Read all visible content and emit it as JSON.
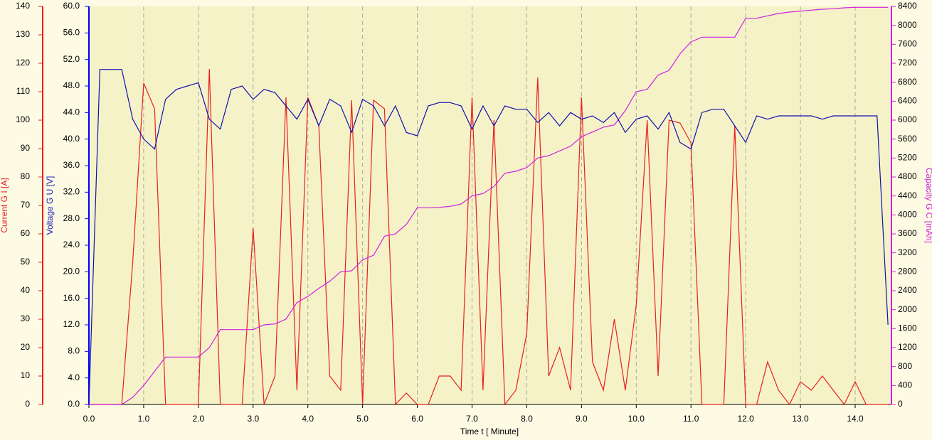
{
  "chart_data": {
    "type": "line",
    "xlabel": "Time  t  [ Minute]",
    "ylabel": "Voltage G  U  [V]",
    "y2label": "Capacity G  C  [mAh]",
    "y3label": "Current G  I  [A]",
    "grid": true,
    "xlim": [
      0,
      14.65
    ],
    "xticks": [
      {
        "value": 0,
        "label": "0.0"
      },
      {
        "value": 1,
        "label": "1.0"
      },
      {
        "value": 2,
        "label": "2.0"
      },
      {
        "value": 3,
        "label": "3.0"
      },
      {
        "value": 4,
        "label": "4.0"
      },
      {
        "value": 5,
        "label": "5.0"
      },
      {
        "value": 6,
        "label": "6.0"
      },
      {
        "value": 7,
        "label": "7.0"
      },
      {
        "value": 8,
        "label": "8.0"
      },
      {
        "value": 9,
        "label": "9.0"
      },
      {
        "value": 10,
        "label": "10.0"
      },
      {
        "value": 11,
        "label": "11.0"
      },
      {
        "value": 12,
        "label": "12.0"
      },
      {
        "value": 13,
        "label": "13.0"
      },
      {
        "value": 14,
        "label": "14.0"
      }
    ],
    "ylim": [
      0,
      60
    ],
    "yticks": [
      {
        "value": 0,
        "label": "0.0"
      },
      {
        "value": 4,
        "label": "4.0"
      },
      {
        "value": 8,
        "label": "8.0"
      },
      {
        "value": 12,
        "label": "12.0"
      },
      {
        "value": 16,
        "label": "16.0"
      },
      {
        "value": 20,
        "label": "20.0"
      },
      {
        "value": 24,
        "label": "24.0"
      },
      {
        "value": 28,
        "label": "28.0"
      },
      {
        "value": 32,
        "label": "32.0"
      },
      {
        "value": 36,
        "label": "36.0"
      },
      {
        "value": 40,
        "label": "40.0"
      },
      {
        "value": 44,
        "label": "44.0"
      },
      {
        "value": 48,
        "label": "48.0"
      },
      {
        "value": 52,
        "label": "52.0"
      },
      {
        "value": 56,
        "label": "56.0"
      },
      {
        "value": 60,
        "label": "60.0"
      }
    ],
    "y2lim": [
      0,
      8400
    ],
    "y2ticks": [
      0,
      400,
      800,
      1200,
      1600,
      2000,
      2400,
      2800,
      3200,
      3600,
      4000,
      4400,
      4800,
      5200,
      5600,
      6000,
      6400,
      6800,
      7200,
      7600,
      8000,
      8400
    ],
    "y3lim": [
      0,
      140
    ],
    "y3ticks": [
      0,
      10,
      20,
      30,
      40,
      50,
      60,
      70,
      80,
      90,
      100,
      110,
      120,
      130,
      140
    ],
    "x": [
      0,
      0.2,
      0.4,
      0.6,
      0.8,
      1.0,
      1.2,
      1.4,
      1.6,
      1.8,
      2.0,
      2.2,
      2.4,
      2.6,
      2.8,
      3.0,
      3.2,
      3.4,
      3.6,
      3.8,
      4.0,
      4.2,
      4.4,
      4.6,
      4.8,
      5.0,
      5.2,
      5.4,
      5.6,
      5.8,
      6.0,
      6.2,
      6.4,
      6.6,
      6.8,
      7.0,
      7.2,
      7.4,
      7.6,
      7.8,
      8.0,
      8.2,
      8.4,
      8.6,
      8.8,
      9.0,
      9.2,
      9.4,
      9.6,
      9.8,
      10.0,
      10.2,
      10.4,
      10.6,
      10.8,
      11.0,
      11.2,
      11.4,
      11.6,
      11.8,
      12.0,
      12.2,
      12.4,
      12.6,
      12.8,
      13.0,
      13.2,
      13.4,
      13.6,
      13.8,
      14.0,
      14.2,
      14.4,
      14.6
    ],
    "series": [
      {
        "name": "Current",
        "color": "#e8201c",
        "axis": "y3",
        "values": [
          0,
          0,
          0,
          0,
          50,
          113,
          104,
          0,
          0,
          0,
          0,
          118,
          0,
          0,
          0,
          62,
          0,
          10,
          108,
          5,
          108,
          98,
          10,
          5,
          107,
          0,
          107,
          104,
          0,
          4,
          0,
          0,
          10,
          10,
          5,
          108,
          5,
          100,
          0,
          5,
          25,
          115,
          10,
          20,
          5,
          108,
          15,
          5,
          30,
          5,
          35,
          100,
          10,
          100,
          99,
          92,
          0,
          0,
          0,
          98,
          0,
          0,
          15,
          5,
          0,
          8,
          5,
          10,
          5,
          0,
          8,
          0,
          0,
          0
        ]
      },
      {
        "name": "Capacity",
        "color": "#d020e0",
        "axis": "y2",
        "values": [
          0,
          0,
          0,
          0,
          150,
          400,
          700,
          1000,
          1000,
          1000,
          1000,
          1200,
          1580,
          1580,
          1580,
          1580,
          1680,
          1700,
          1800,
          2150,
          2280,
          2450,
          2600,
          2800,
          2820,
          3050,
          3150,
          3550,
          3600,
          3800,
          4150,
          4150,
          4160,
          4180,
          4230,
          4400,
          4450,
          4600,
          4880,
          4920,
          5000,
          5200,
          5250,
          5350,
          5450,
          5650,
          5750,
          5850,
          5900,
          6200,
          6600,
          6650,
          6950,
          7050,
          7400,
          7650,
          7750,
          7750,
          7750,
          7750,
          8150,
          8150,
          8200,
          8250,
          8280,
          8300,
          8320,
          8340,
          8350,
          8370,
          8380,
          8380,
          8380,
          8380
        ]
      },
      {
        "name": "Voltage",
        "color": "#1010b0",
        "axis": "y",
        "values": [
          0,
          50.5,
          50.5,
          50.5,
          43,
          40,
          38.5,
          46,
          47.5,
          48,
          48.5,
          43,
          41.5,
          47.5,
          48,
          46,
          47.5,
          47,
          45,
          43,
          46,
          42,
          46,
          45,
          41,
          46,
          45,
          42,
          45,
          41,
          40.5,
          45,
          45.5,
          45.5,
          45,
          41.5,
          45,
          42,
          45,
          44.5,
          44.5,
          42.5,
          44,
          42,
          44,
          43,
          43.5,
          42.5,
          44,
          41,
          43,
          43.5,
          41.5,
          44,
          39.5,
          38.5,
          44,
          44.5,
          44.5,
          42,
          39.5,
          43.5,
          43,
          43.5,
          43.5,
          43.5,
          43.5,
          43,
          43.5,
          43.5,
          43.5,
          43.5,
          43.5,
          12
        ]
      }
    ]
  }
}
